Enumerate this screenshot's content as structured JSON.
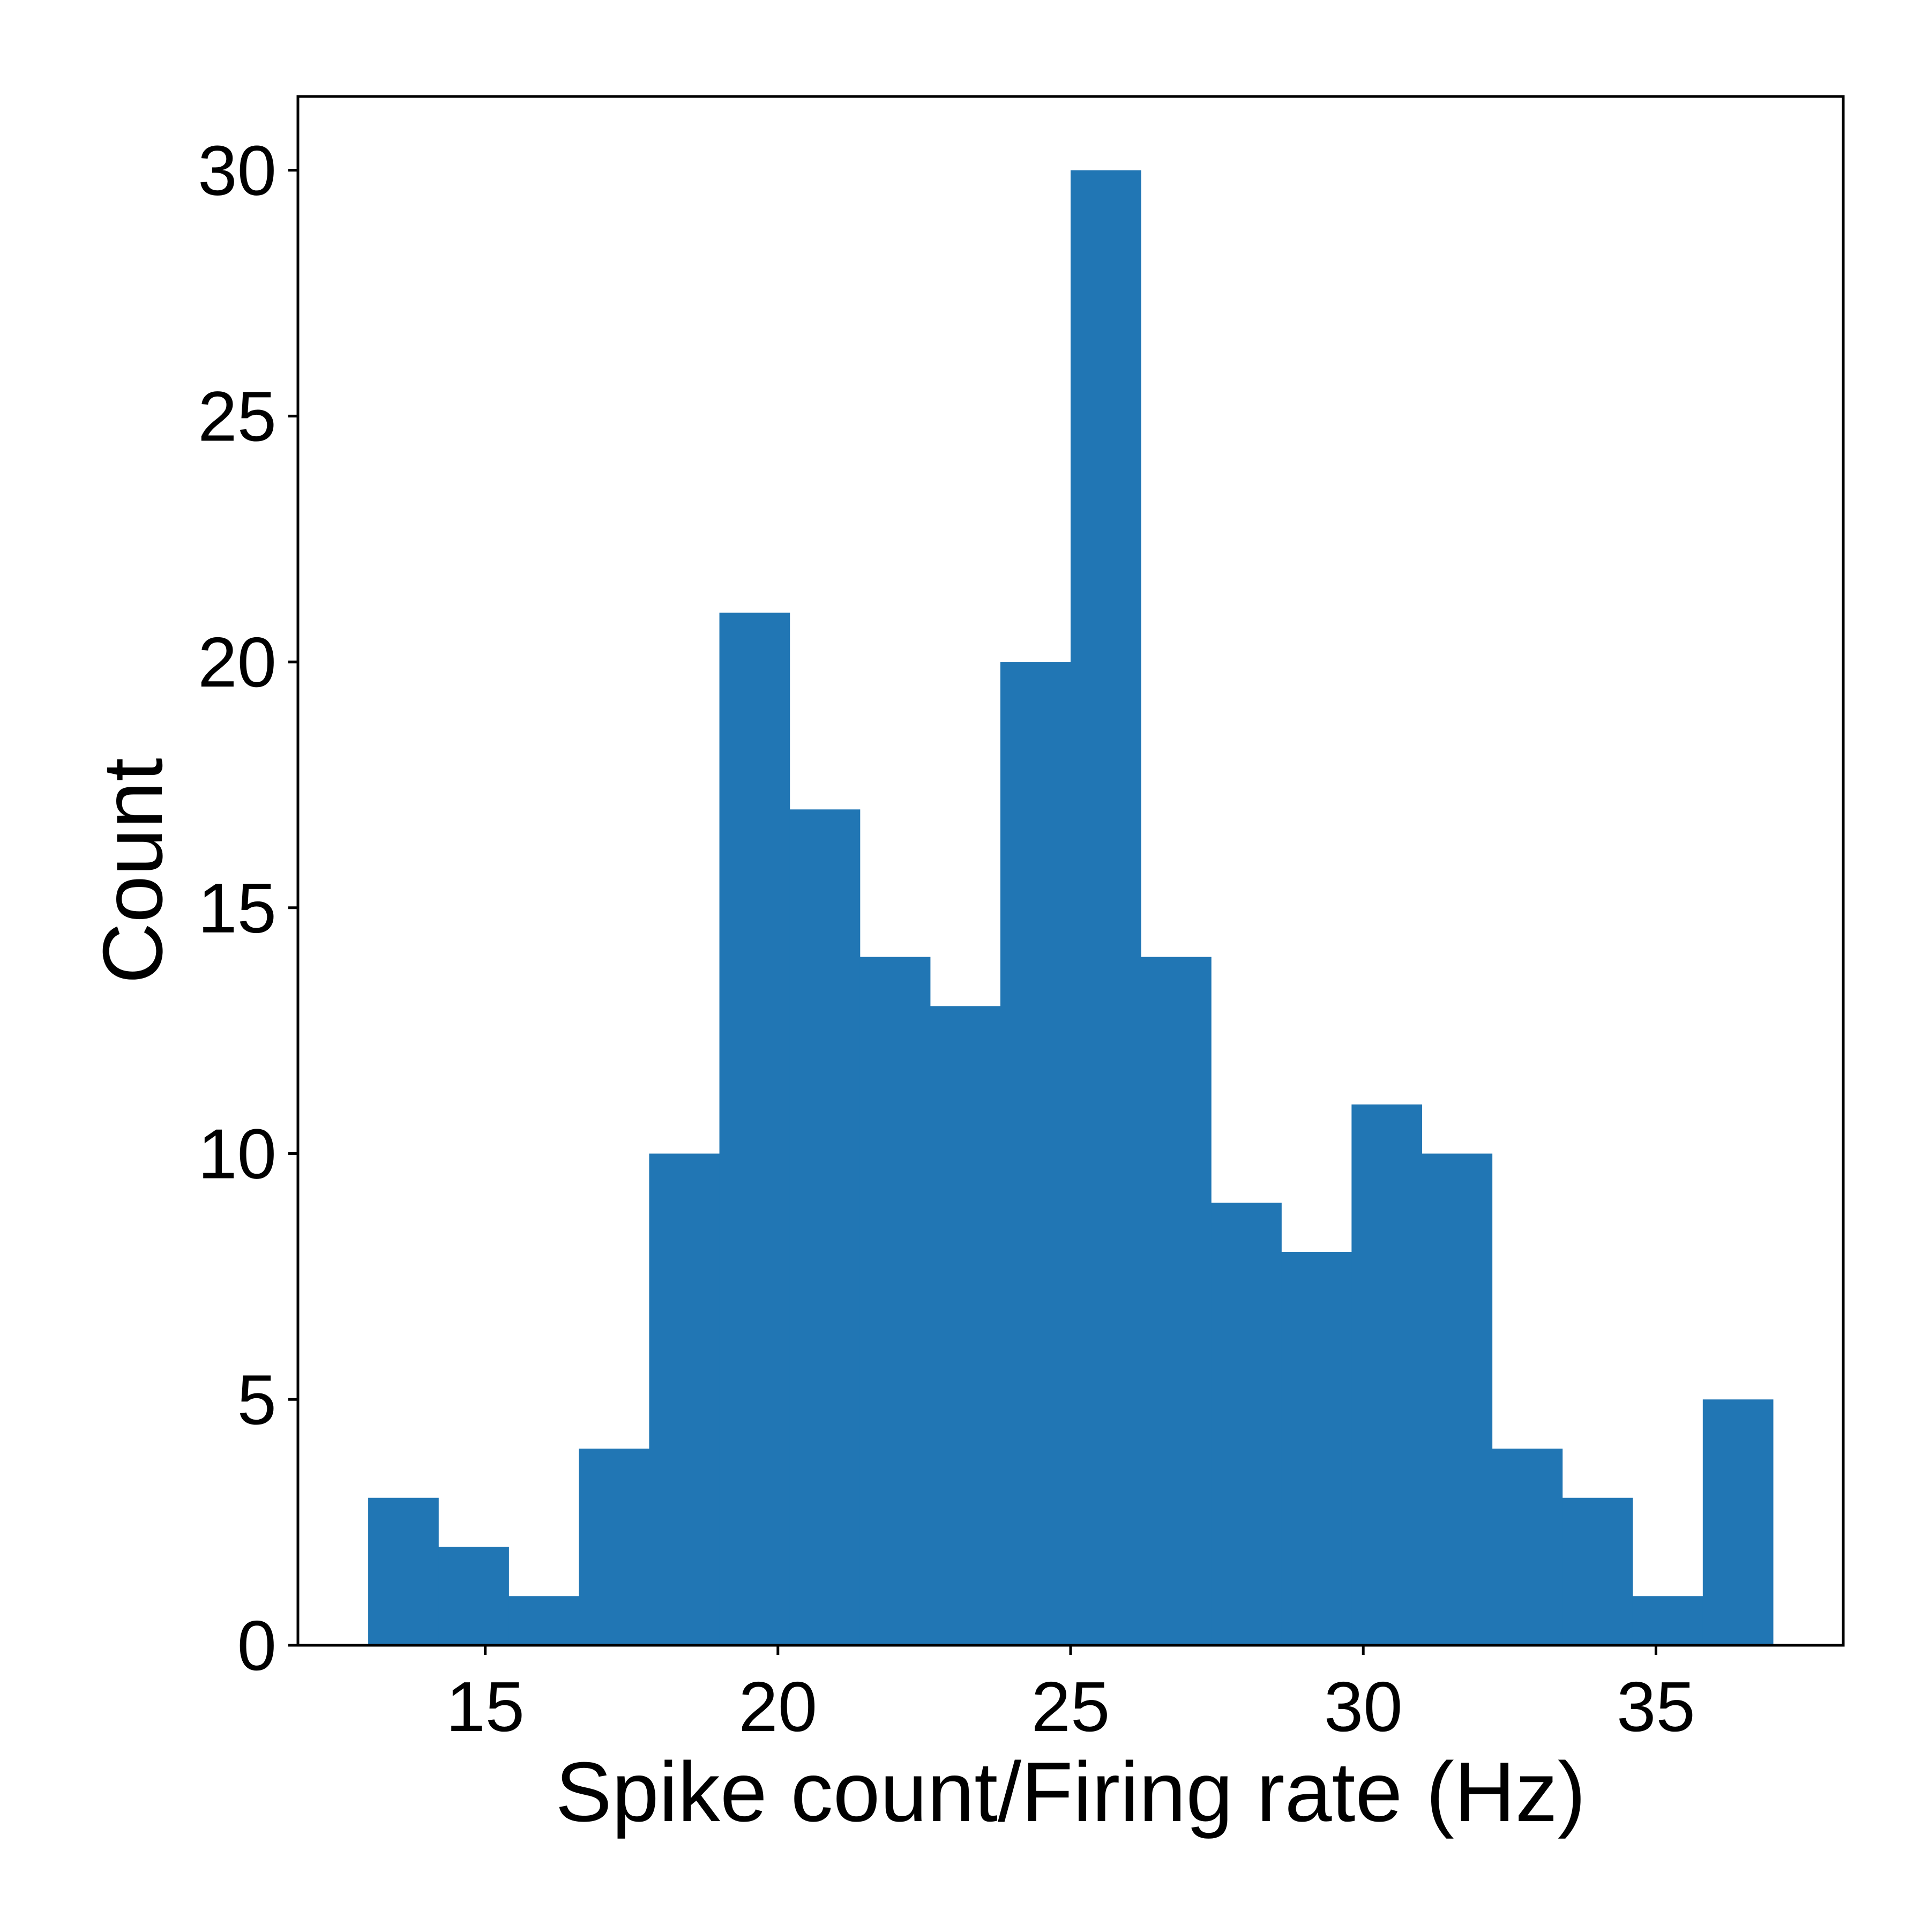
{
  "chart_data": {
    "type": "bar",
    "title": "",
    "xlabel": "Spike count/Firing rate (Hz)",
    "ylabel": "Count",
    "xlim": [
      11.8,
      38.2
    ],
    "ylim": [
      0,
      31.5
    ],
    "xticks": [
      15,
      20,
      25,
      30,
      35
    ],
    "yticks": [
      0,
      5,
      10,
      15,
      20,
      25,
      30
    ],
    "grid": false,
    "legend": "none",
    "bar_color": "#2176b4",
    "bins": [
      {
        "x0": 13.0,
        "x1": 14.2,
        "count": 3
      },
      {
        "x0": 14.2,
        "x1": 15.4,
        "count": 2
      },
      {
        "x0": 15.4,
        "x1": 16.6,
        "count": 1
      },
      {
        "x0": 16.6,
        "x1": 17.8,
        "count": 4
      },
      {
        "x0": 17.8,
        "x1": 19.0,
        "count": 10
      },
      {
        "x0": 19.0,
        "x1": 20.2,
        "count": 21
      },
      {
        "x0": 20.2,
        "x1": 21.4,
        "count": 17
      },
      {
        "x0": 21.4,
        "x1": 22.6,
        "count": 14
      },
      {
        "x0": 22.6,
        "x1": 23.8,
        "count": 13
      },
      {
        "x0": 23.8,
        "x1": 25.0,
        "count": 20
      },
      {
        "x0": 25.0,
        "x1": 26.2,
        "count": 30
      },
      {
        "x0": 26.2,
        "x1": 27.4,
        "count": 14
      },
      {
        "x0": 27.4,
        "x1": 28.6,
        "count": 9
      },
      {
        "x0": 28.6,
        "x1": 29.8,
        "count": 8
      },
      {
        "x0": 29.8,
        "x1": 31.0,
        "count": 11
      },
      {
        "x0": 31.0,
        "x1": 32.2,
        "count": 10
      },
      {
        "x0": 32.2,
        "x1": 33.4,
        "count": 4
      },
      {
        "x0": 33.4,
        "x1": 34.6,
        "count": 3
      },
      {
        "x0": 34.6,
        "x1": 35.8,
        "count": 1
      },
      {
        "x0": 35.8,
        "x1": 37.0,
        "count": 5
      }
    ]
  }
}
